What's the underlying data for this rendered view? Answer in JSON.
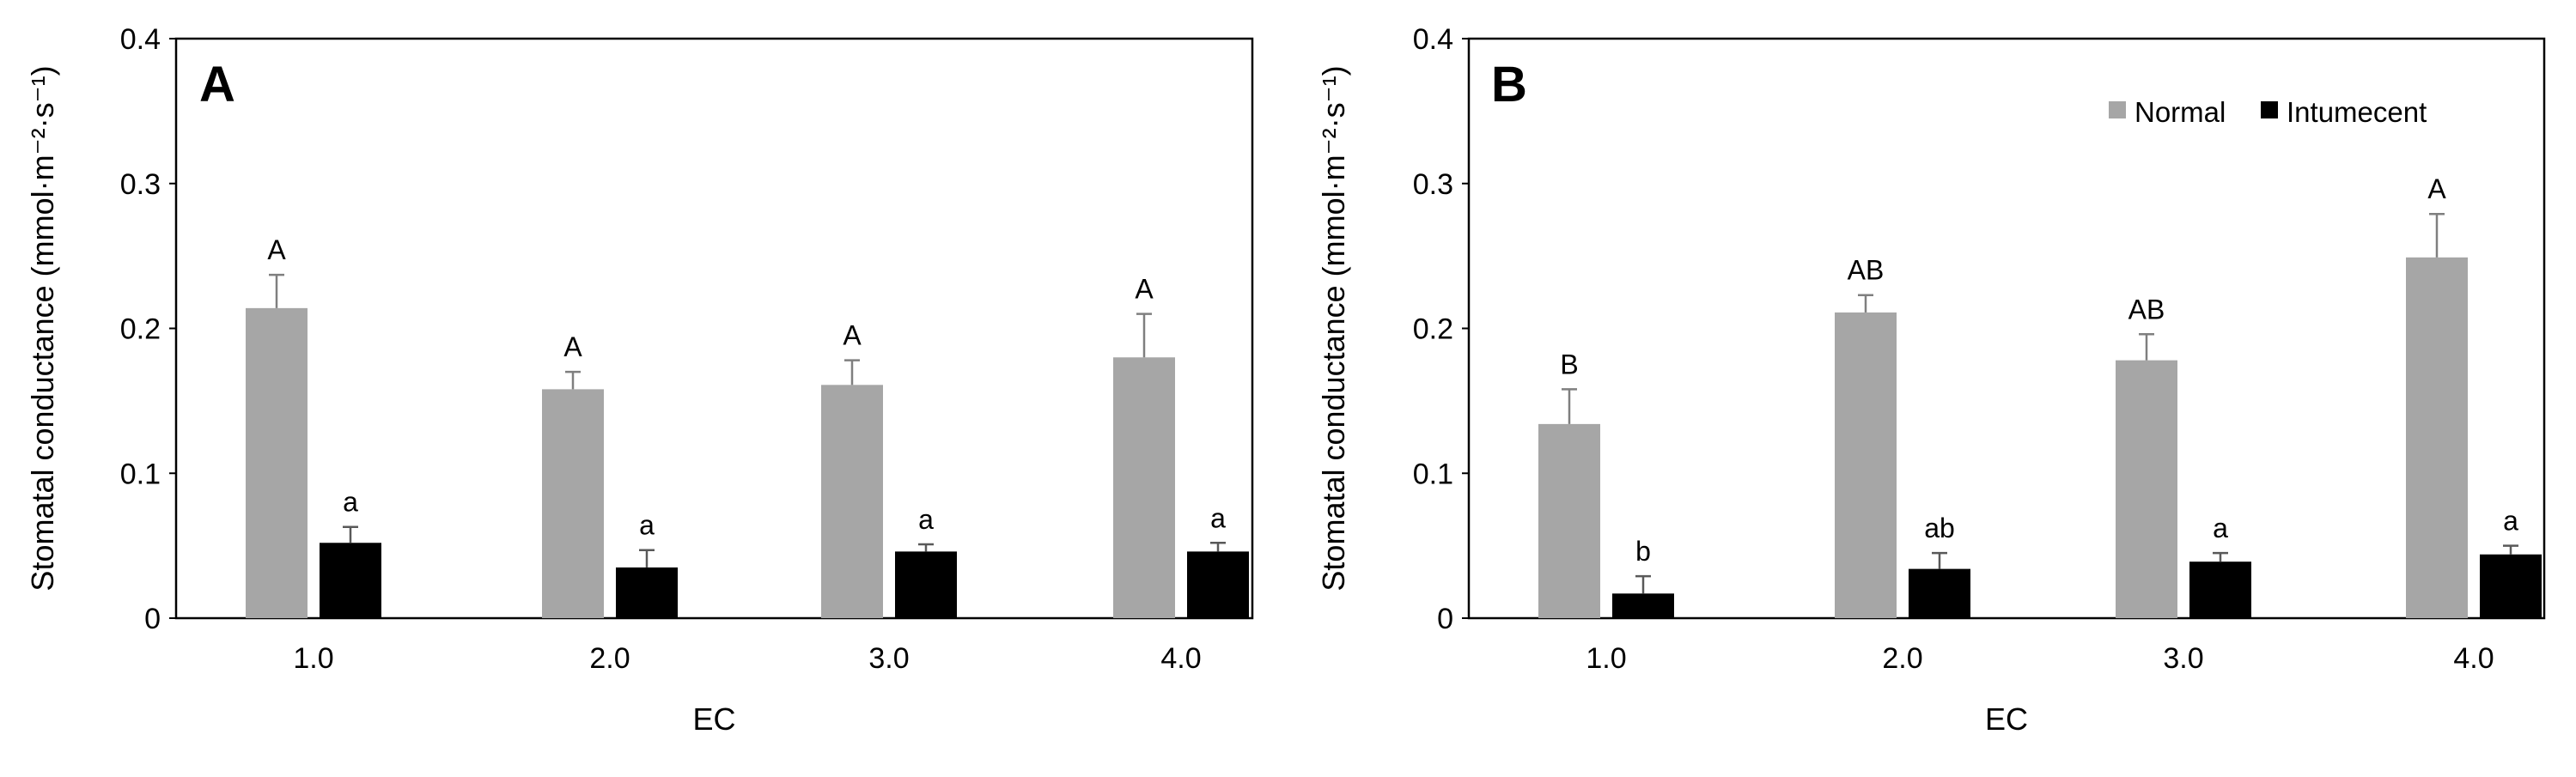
{
  "chart_data": [
    {
      "type": "bar",
      "panel_label": "A",
      "categories": [
        "1.0",
        "2.0",
        "3.0",
        "4.0"
      ],
      "series": [
        {
          "name": "Normal",
          "color": "#a6a6a6",
          "values": [
            0.214,
            0.158,
            0.161,
            0.18
          ],
          "errors": [
            0.023,
            0.012,
            0.017,
            0.03
          ],
          "letters": [
            "A",
            "A",
            "A",
            "A"
          ]
        },
        {
          "name": "Intumecent",
          "color": "#000000",
          "values": [
            0.052,
            0.035,
            0.046,
            0.046
          ],
          "errors": [
            0.011,
            0.012,
            0.005,
            0.006
          ],
          "letters": [
            "a",
            "a",
            "a",
            "a"
          ]
        }
      ],
      "xlabel": "EC",
      "ylabel": "Stomatal conductance (mmol·m⁻²·s⁻¹)",
      "ylim": [
        0,
        0.4
      ],
      "yticks": [
        "0",
        "0.1",
        "0.2",
        "0.3",
        "0.4"
      ],
      "legend": null,
      "grid": false
    },
    {
      "type": "bar",
      "panel_label": "B",
      "categories": [
        "1.0",
        "2.0",
        "3.0",
        "4.0"
      ],
      "series": [
        {
          "name": "Normal",
          "color": "#a6a6a6",
          "values": [
            0.134,
            0.211,
            0.178,
            0.249
          ],
          "errors": [
            0.024,
            0.012,
            0.018,
            0.03
          ],
          "letters": [
            "B",
            "AB",
            "AB",
            "A"
          ]
        },
        {
          "name": "Intumecent",
          "color": "#000000",
          "values": [
            0.017,
            0.034,
            0.039,
            0.044
          ],
          "errors": [
            0.012,
            0.011,
            0.006,
            0.006
          ],
          "letters": [
            "b",
            "ab",
            "a",
            "a"
          ]
        }
      ],
      "xlabel": "EC",
      "ylabel": "Stomatal conductance (mmol·m⁻²·s⁻¹)",
      "ylim": [
        0,
        0.4
      ],
      "yticks": [
        "0",
        "0.1",
        "0.2",
        "0.3",
        "0.4"
      ],
      "legend": {
        "position": "top-right",
        "entries": [
          "Normal",
          "Intumecent"
        ]
      },
      "grid": false
    }
  ]
}
